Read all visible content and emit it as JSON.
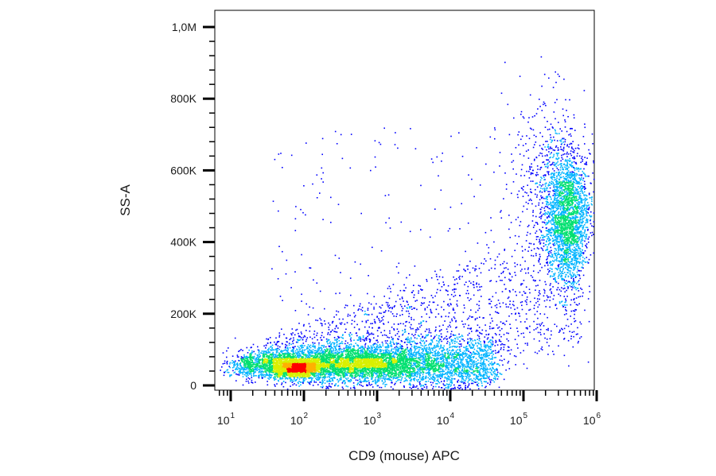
{
  "chart_data": {
    "type": "scatter",
    "style": "flow-cytometry pseudocolor density plot",
    "xlabel": "CD9 (mouse) APC",
    "ylabel": "SS-A",
    "x_scale": "biexponential (log)",
    "y_scale": "linear",
    "xlim": [
      5,
      1500000
    ],
    "ylim": [
      -10000,
      1050000
    ],
    "x_ticks": [
      {
        "base": "10",
        "exp": "1",
        "value": 10
      },
      {
        "base": "10",
        "exp": "2",
        "value": 100
      },
      {
        "base": "10",
        "exp": "3",
        "value": 1000
      },
      {
        "base": "10",
        "exp": "4",
        "value": 10000
      },
      {
        "base": "10",
        "exp": "5",
        "value": 100000
      },
      {
        "base": "10",
        "exp": "6",
        "value": 1000000
      }
    ],
    "y_ticks": [
      {
        "label": "0",
        "value": 0
      },
      {
        "label": "200K",
        "value": 200000
      },
      {
        "label": "400K",
        "value": 400000
      },
      {
        "label": "600K",
        "value": 600000
      },
      {
        "label": "800K",
        "value": 800000
      },
      {
        "label": "1,0M",
        "value": 1000000
      }
    ],
    "density_colors": [
      "#0000ff",
      "#00b4ff",
      "#00e070",
      "#d8f000",
      "#ffb000",
      "#ff0000"
    ],
    "populations": [
      {
        "name_visible": false,
        "x_center": 100,
        "y_center": 60000,
        "note": "main dense population, peak density (red)"
      },
      {
        "name_visible": false,
        "x_center": 1200,
        "y_center": 75000,
        "note": "broad low-SSC population spanning 10^1 to 10^4"
      },
      {
        "name_visible": false,
        "x_center": 450000,
        "y_center": 460000,
        "note": "high CD9 / high SSC population"
      }
    ],
    "grid": false,
    "legend": "none"
  }
}
